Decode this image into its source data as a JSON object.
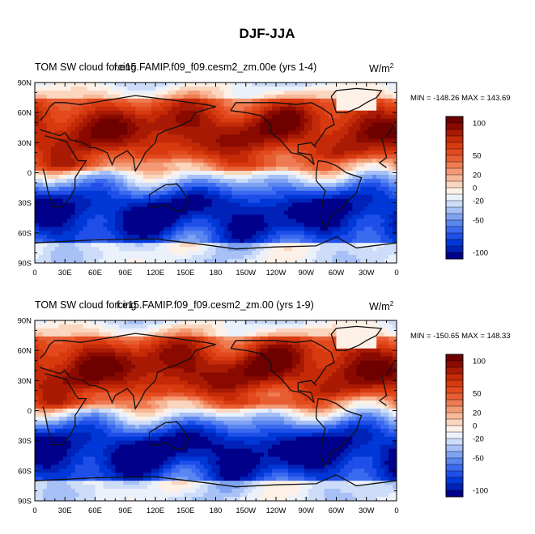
{
  "title": "DJF-JJA",
  "units": "W/m",
  "units_exp": "2",
  "lat_ticks": [
    "90N",
    "60N",
    "30N",
    "0",
    "30S",
    "60S",
    "90S"
  ],
  "lon_ticks": [
    "0",
    "30E",
    "60E",
    "90E",
    "120E",
    "150E",
    "180",
    "150W",
    "120W",
    "90W",
    "60W",
    "30W",
    "0"
  ],
  "colorbar": {
    "levels": [
      -110,
      -100,
      -90,
      -80,
      -70,
      -60,
      -50,
      -40,
      -30,
      -20,
      -10,
      0,
      10,
      20,
      30,
      40,
      50,
      60,
      70,
      80,
      90,
      100,
      110
    ],
    "labels": [
      "100",
      "50",
      "20",
      "0",
      "-20",
      "-50",
      "-100"
    ],
    "colors": [
      "#00008b",
      "#0022b8",
      "#0038d8",
      "#1f4fe8",
      "#3a6aef",
      "#5a86f0",
      "#7fa3f2",
      "#a7c0f5",
      "#cddcf8",
      "#eaf1fb",
      "#fdf0e6",
      "#fbd6bf",
      "#f7b898",
      "#f39a74",
      "#ee7b52",
      "#e85e33",
      "#e24a1e",
      "#d83a10",
      "#c52a08",
      "#a81a04",
      "#8b0a00",
      "#6e0000"
    ]
  },
  "chart_data": [
    {
      "type": "heatmap",
      "subtitle_left": "TOM SW cloud forcing",
      "subtitle_center": "f.e15.FAMIP.f09_f09.cesm2_zm.00e (yrs 1-4)",
      "stats": "MIN = -148.26 MAX = 143.69",
      "min": -148.26,
      "max": 143.69,
      "xlim": [
        0,
        360
      ],
      "ylim": [
        -90,
        90
      ]
    },
    {
      "type": "heatmap",
      "subtitle_left": "TOM SW cloud forcing",
      "subtitle_center": "f.e15.FAMIP.f09_f09.cesm2_zm.00 (yrs 1-9)",
      "stats": "MIN = -150.65 MAX = 148.33",
      "min": -150.65,
      "max": 148.33,
      "xlim": [
        0,
        360
      ],
      "ylim": [
        -90,
        90
      ]
    }
  ]
}
